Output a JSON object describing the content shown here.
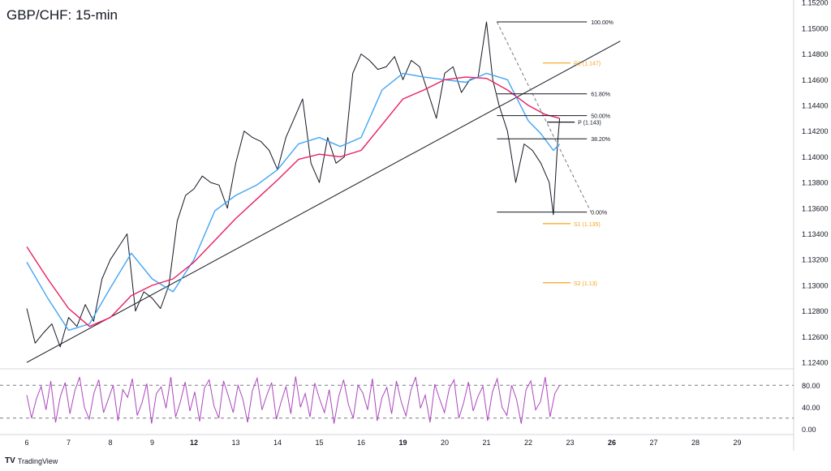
{
  "header": {
    "title": "GBP/CHF: 15-min"
  },
  "brand": {
    "logo": "TV",
    "name": "TradingView"
  },
  "chart_data": {
    "type": "line",
    "title": "GBP/CHF: 15-min",
    "price_axis": {
      "ylim": [
        1.1235,
        1.1522
      ],
      "ticks": [
        "1.15200",
        "1.15000",
        "1.14800",
        "1.14600",
        "1.14400",
        "1.14200",
        "1.14000",
        "1.13800",
        "1.13600",
        "1.13400",
        "1.13200",
        "1.13000",
        "1.12800",
        "1.12600",
        "1.12400"
      ]
    },
    "time_axis": {
      "labels": [
        "6",
        "7",
        "8",
        "9",
        "12",
        "13",
        "14",
        "15",
        "16",
        "19",
        "20",
        "21",
        "22",
        "23",
        "26",
        "27",
        "28",
        "29"
      ],
      "bold_labels": [
        "12",
        "19",
        "26"
      ]
    },
    "series": [
      {
        "key": "price",
        "color": "#131722",
        "x": [
          0.0,
          0.2,
          0.4,
          0.6,
          0.8,
          1.0,
          1.2,
          1.4,
          1.6,
          1.8,
          2.0,
          2.2,
          2.4,
          2.6,
          2.8,
          3.0,
          3.2,
          3.4,
          3.6,
          3.8,
          4.0,
          4.2,
          4.4,
          4.6,
          4.8,
          5.0,
          5.2,
          5.4,
          5.6,
          5.8,
          6.0,
          6.2,
          6.4,
          6.6,
          6.8,
          7.0,
          7.2,
          7.4,
          7.6,
          7.8,
          8.0,
          8.2,
          8.4,
          8.6,
          8.8,
          9.0,
          9.2,
          9.4,
          9.6,
          9.8,
          10.0,
          10.2,
          10.4,
          10.6,
          10.8,
          11.0,
          11.15,
          11.3,
          11.5,
          11.7,
          11.9,
          12.1,
          12.3,
          12.5,
          12.6,
          12.7,
          12.75
        ],
        "y": [
          1.1282,
          1.1255,
          1.1263,
          1.127,
          1.1252,
          1.1275,
          1.1268,
          1.1285,
          1.1272,
          1.1305,
          1.132,
          1.133,
          1.134,
          1.128,
          1.1295,
          1.129,
          1.1282,
          1.13,
          1.135,
          1.137,
          1.1375,
          1.1385,
          1.138,
          1.1378,
          1.136,
          1.1395,
          1.142,
          1.1415,
          1.1412,
          1.1405,
          1.139,
          1.1415,
          1.143,
          1.1445,
          1.1395,
          1.138,
          1.1415,
          1.1395,
          1.14,
          1.1465,
          1.148,
          1.1475,
          1.1468,
          1.147,
          1.1478,
          1.146,
          1.1475,
          1.147,
          1.145,
          1.143,
          1.1465,
          1.147,
          1.145,
          1.146,
          1.1462,
          1.1505,
          1.146,
          1.144,
          1.142,
          1.138,
          1.141,
          1.1405,
          1.1395,
          1.138,
          1.1355,
          1.141,
          1.143
        ]
      },
      {
        "key": "ma-fast",
        "color": "#42a5f5",
        "x": [
          0.0,
          0.5,
          1.0,
          1.5,
          2.0,
          2.5,
          3.0,
          3.5,
          4.0,
          4.5,
          5.0,
          5.5,
          6.0,
          6.5,
          7.0,
          7.5,
          8.0,
          8.5,
          9.0,
          9.5,
          10.0,
          10.5,
          11.0,
          11.5,
          12.0,
          12.3,
          12.6,
          12.75
        ],
        "y": [
          1.1318,
          1.129,
          1.1265,
          1.127,
          1.1298,
          1.1325,
          1.1305,
          1.1295,
          1.132,
          1.1358,
          1.137,
          1.1378,
          1.139,
          1.141,
          1.1415,
          1.1408,
          1.1415,
          1.1452,
          1.1465,
          1.1462,
          1.146,
          1.1458,
          1.1465,
          1.146,
          1.1428,
          1.1418,
          1.1405,
          1.141
        ]
      },
      {
        "key": "ma-slow",
        "color": "#e91e63",
        "x": [
          0.0,
          0.5,
          1.0,
          1.5,
          2.0,
          2.5,
          3.0,
          3.5,
          4.0,
          4.5,
          5.0,
          5.5,
          6.0,
          6.5,
          7.0,
          7.5,
          8.0,
          8.5,
          9.0,
          9.5,
          10.0,
          10.5,
          11.0,
          11.5,
          12.0,
          12.4,
          12.75
        ],
        "y": [
          1.133,
          1.1305,
          1.1282,
          1.1268,
          1.1275,
          1.1292,
          1.13,
          1.1305,
          1.1318,
          1.1335,
          1.1352,
          1.1367,
          1.1382,
          1.1398,
          1.1402,
          1.14,
          1.1405,
          1.1425,
          1.1445,
          1.1452,
          1.146,
          1.1462,
          1.1461,
          1.1452,
          1.144,
          1.1433,
          1.143
        ]
      }
    ],
    "trendline": {
      "x": [
        0.0,
        14.2
      ],
      "y": [
        1.124,
        1.149
      ],
      "color": "#131722"
    },
    "fibonacci": {
      "color": "#131722",
      "x_start": 11.25,
      "x_end": 13.5,
      "x_label": 13.5,
      "levels": [
        {
          "label": "100.00%",
          "value": 1.1505
        },
        {
          "label": "61.80%",
          "value": 1.1449
        },
        {
          "label": "50.00%",
          "value": 1.1432
        },
        {
          "label": "38.20%",
          "value": 1.1414
        },
        {
          "label": "0.00%",
          "value": 1.1357
        }
      ],
      "diagonal": {
        "x": [
          11.25,
          13.5
        ],
        "y": [
          1.1505,
          1.1357
        ]
      }
    },
    "pivots": [
      {
        "label": "R1 (1.147)",
        "value": 1.1473,
        "color": "#f7a21b",
        "x_start": 12.35,
        "x_end": 13.35
      },
      {
        "label": "P (1.143)",
        "value": 1.1427,
        "color": "#131722",
        "x_start": 12.45,
        "x_end": 13.45
      },
      {
        "label": "S1 (1.135)",
        "value": 1.1348,
        "color": "#f7a21b",
        "x_start": 12.35,
        "x_end": 13.35
      },
      {
        "label": "S2 (1.13)",
        "value": 1.1302,
        "color": "#f7a21b",
        "x_start": 12.35,
        "x_end": 13.35
      }
    ],
    "rsi": {
      "color": "#ab47bc",
      "ylim": [
        -10,
        110
      ],
      "ticks": [
        "80.00",
        "40.00",
        "0.00"
      ],
      "dashed_levels": [
        80,
        20
      ],
      "values": [
        62,
        20,
        55,
        78,
        35,
        88,
        12,
        60,
        85,
        28,
        70,
        95,
        40,
        18,
        66,
        90,
        30,
        55,
        80,
        15,
        72,
        58,
        92,
        25,
        48,
        83,
        10,
        65,
        77,
        38,
        95,
        22,
        50,
        86,
        33,
        68,
        14,
        75,
        90,
        42,
        20,
        88,
        60,
        30,
        80,
        55,
        12,
        70,
        93,
        35,
        62,
        85,
        18,
        50,
        78,
        28,
        96,
        40,
        65,
        22,
        84,
        55,
        30,
        72,
        10,
        60,
        90,
        45,
        20,
        80,
        66,
        35,
        92,
        15,
        58,
        76,
        28,
        88,
        50,
        24,
        70,
        95,
        38,
        62,
        12,
        82,
        55,
        30,
        74,
        90,
        20,
        48,
        86,
        33,
        60,
        78,
        15,
        68,
        92,
        40,
        25,
        80,
        55,
        10,
        72,
        88,
        35,
        50,
        95,
        22,
        65,
        80
      ],
      "x_start": 0.0,
      "x_end": 12.75
    }
  }
}
